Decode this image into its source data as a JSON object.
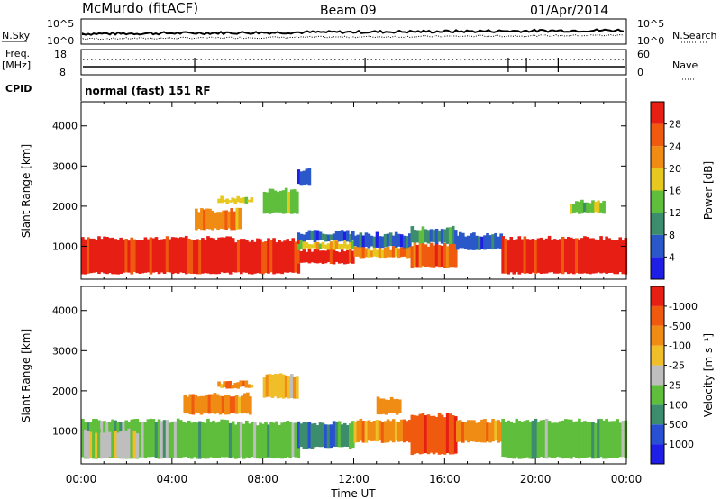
{
  "header": {
    "station": "McMurdo (fitACF)",
    "beam": "Beam 09",
    "date": "01/Apr/2014"
  },
  "summary_panels": {
    "nsky_label": "N.Sky",
    "nsky_top": "10^5",
    "nsky_bottom": "10^0",
    "nsearch_label": "N.Search",
    "nsearch_top": "10^5",
    "nsearch_bottom": "10^0",
    "freq_label": "Freq.",
    "freq_unit": "[MHz]",
    "freq_top": "18",
    "freq_bottom": "8",
    "nave_top": "60",
    "nave_bottom": "0",
    "nave_label": "Nave",
    "cpid_label": "CPID",
    "cpid_value": "normal (fast) 151 RF"
  },
  "chart_data": [
    {
      "type": "heatmap",
      "name": "power",
      "ylabel": "Slant Range [km]",
      "yticks": [
        1000,
        2000,
        3000,
        4000
      ],
      "ylim": [
        180,
        4600
      ],
      "xlim": [
        0,
        24
      ],
      "colorbar": {
        "title": "Power [dB]",
        "labels": [
          "4",
          "8",
          "12",
          "16",
          "20",
          "24",
          "28"
        ],
        "colors": [
          "#1e1ee6",
          "#2a58c8",
          "#3c8c6e",
          "#5fbe3c",
          "#e6c81e",
          "#f08c14",
          "#f05a0f",
          "#e61e14"
        ]
      },
      "regions": [
        {
          "t0": 0.0,
          "t1": 6.5,
          "r0": 300,
          "r1": 1200,
          "level": 7
        },
        {
          "t0": 6.5,
          "t1": 9.5,
          "r0": 300,
          "r1": 1150,
          "level": 7
        },
        {
          "t0": 9.5,
          "t1": 12.0,
          "r0": 550,
          "r1": 900,
          "level": 7
        },
        {
          "t0": 9.5,
          "t1": 12.0,
          "r0": 900,
          "r1": 1100,
          "level": 4
        },
        {
          "t0": 9.5,
          "t1": 12.0,
          "r0": 1100,
          "r1": 1350,
          "level": 1
        },
        {
          "t0": 12.0,
          "t1": 14.5,
          "r0": 700,
          "r1": 950,
          "level": 5
        },
        {
          "t0": 12.0,
          "t1": 14.5,
          "r0": 950,
          "r1": 1300,
          "level": 1
        },
        {
          "t0": 14.5,
          "t1": 16.5,
          "r0": 450,
          "r1": 1050,
          "level": 6
        },
        {
          "t0": 14.5,
          "t1": 16.5,
          "r0": 1050,
          "r1": 1450,
          "level": 2
        },
        {
          "t0": 16.5,
          "t1": 18.5,
          "r0": 900,
          "r1": 1300,
          "level": 1
        },
        {
          "t0": 18.5,
          "t1": 24.0,
          "r0": 300,
          "r1": 1200,
          "level": 7
        },
        {
          "t0": 5.0,
          "t1": 7.0,
          "r0": 1400,
          "r1": 1900,
          "level": 5
        },
        {
          "t0": 6.0,
          "t1": 7.5,
          "r0": 2050,
          "r1": 2200,
          "level": 4
        },
        {
          "t0": 8.0,
          "t1": 9.5,
          "r0": 1800,
          "r1": 2400,
          "level": 3
        },
        {
          "t0": 9.5,
          "t1": 10.0,
          "r0": 2500,
          "r1": 2900,
          "level": 1
        },
        {
          "t0": 21.5,
          "t1": 23.0,
          "r0": 1800,
          "r1": 2100,
          "level": 3
        }
      ]
    },
    {
      "type": "heatmap",
      "name": "velocity",
      "xlabel": "Time UT",
      "ylabel": "Slant Range [km]",
      "xticks": [
        "00:00",
        "04:00",
        "08:00",
        "12:00",
        "16:00",
        "20:00",
        "00:00"
      ],
      "yticks": [
        1000,
        2000,
        3000,
        4000
      ],
      "ylim": [
        180,
        4600
      ],
      "xlim": [
        0,
        24
      ],
      "colorbar": {
        "title": "Velocity [m s⁻¹]",
        "labels": [
          "1000",
          "500",
          "100",
          "25",
          "-25",
          "-100",
          "-500",
          "-1000"
        ],
        "colors": [
          "#1e1ee6",
          "#2850d2",
          "#3c8c6e",
          "#5fbe3c",
          "#bebebe",
          "#f0be28",
          "#f08c14",
          "#f05a0f",
          "#e61e14"
        ]
      },
      "regions": [
        {
          "t0": 0.0,
          "t1": 6.5,
          "r0": 300,
          "r1": 1250,
          "level": 3
        },
        {
          "t0": 0.0,
          "t1": 2.5,
          "r0": 300,
          "r1": 1000,
          "level": 4
        },
        {
          "t0": 6.5,
          "t1": 9.5,
          "r0": 300,
          "r1": 1200,
          "level": 3
        },
        {
          "t0": 9.5,
          "t1": 12.0,
          "r0": 550,
          "r1": 1200,
          "level": 2
        },
        {
          "t0": 12.0,
          "t1": 14.5,
          "r0": 700,
          "r1": 1250,
          "level": 6
        },
        {
          "t0": 14.5,
          "t1": 16.5,
          "r0": 400,
          "r1": 1400,
          "level": 7
        },
        {
          "t0": 16.5,
          "t1": 18.5,
          "r0": 700,
          "r1": 1250,
          "level": 6
        },
        {
          "t0": 18.5,
          "t1": 24.0,
          "r0": 300,
          "r1": 1250,
          "level": 3
        },
        {
          "t0": 4.5,
          "t1": 7.5,
          "r0": 1400,
          "r1": 1900,
          "level": 6
        },
        {
          "t0": 6.0,
          "t1": 7.5,
          "r0": 2050,
          "r1": 2200,
          "level": 6
        },
        {
          "t0": 8.0,
          "t1": 9.5,
          "r0": 1800,
          "r1": 2400,
          "level": 5
        },
        {
          "t0": 13.0,
          "t1": 14.0,
          "r0": 1400,
          "r1": 1800,
          "level": 6
        }
      ]
    }
  ]
}
